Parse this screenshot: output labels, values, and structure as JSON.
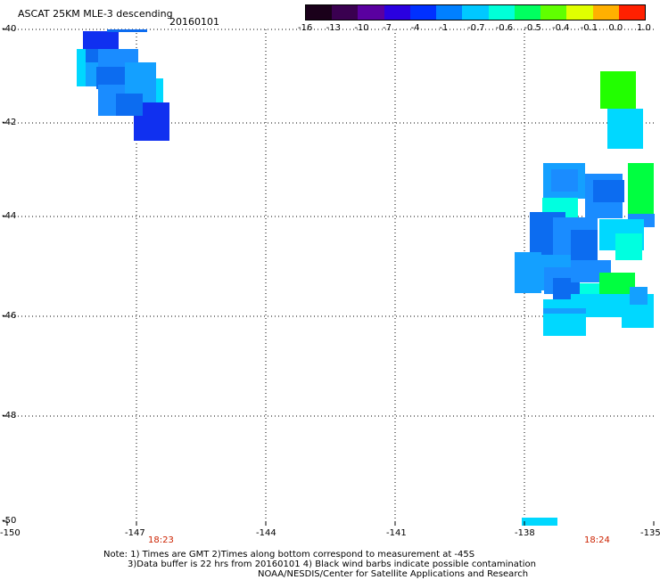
{
  "header": {
    "title": "ASCAT 25KM MLE-3 descending",
    "date": "20160101"
  },
  "colorbar": {
    "labels": [
      "-16",
      "-13",
      "-10",
      "-7",
      "-4",
      "-1",
      "-0.7",
      "-0.6",
      "-0.5",
      "-0.4",
      "-0.1",
      "0.0",
      "1.0"
    ],
    "colors": [
      "#1a001a",
      "#3a0050",
      "#5a00a0",
      "#2a00e0",
      "#0030ff",
      "#0080ff",
      "#00c8ff",
      "#00ffd8",
      "#00ff60",
      "#60ff00",
      "#e0ff00",
      "#ffb000",
      "#ff2000"
    ]
  },
  "axes": {
    "lat_labels": [
      "-40",
      "-42",
      "-44",
      "-46",
      "-48",
      "-50"
    ],
    "lon_labels": [
      "-150",
      "-147",
      "-144",
      "-141",
      "-138",
      "-135"
    ]
  },
  "times": {
    "left": "18:23",
    "right": "18:24"
  },
  "notes": {
    "line1": "Note: 1) Times are GMT 2)Times along bottom correspond to measurement at -45S",
    "line2": "3)Data buffer is 22 hrs from 20160101 4) Black wind barbs indicate possible contamination",
    "line3": "NOAA/NESDIS/Center for Satellite Applications and Research"
  },
  "swath_colors": {
    "blue_dark": "#1030f0",
    "blue": "#0c6cf0",
    "blue_mid": "#1a8cff",
    "sky": "#14a0ff",
    "cyan": "#00d8ff",
    "aqua": "#00ffe0",
    "green": "#00ff40",
    "lime": "#22ff00"
  }
}
